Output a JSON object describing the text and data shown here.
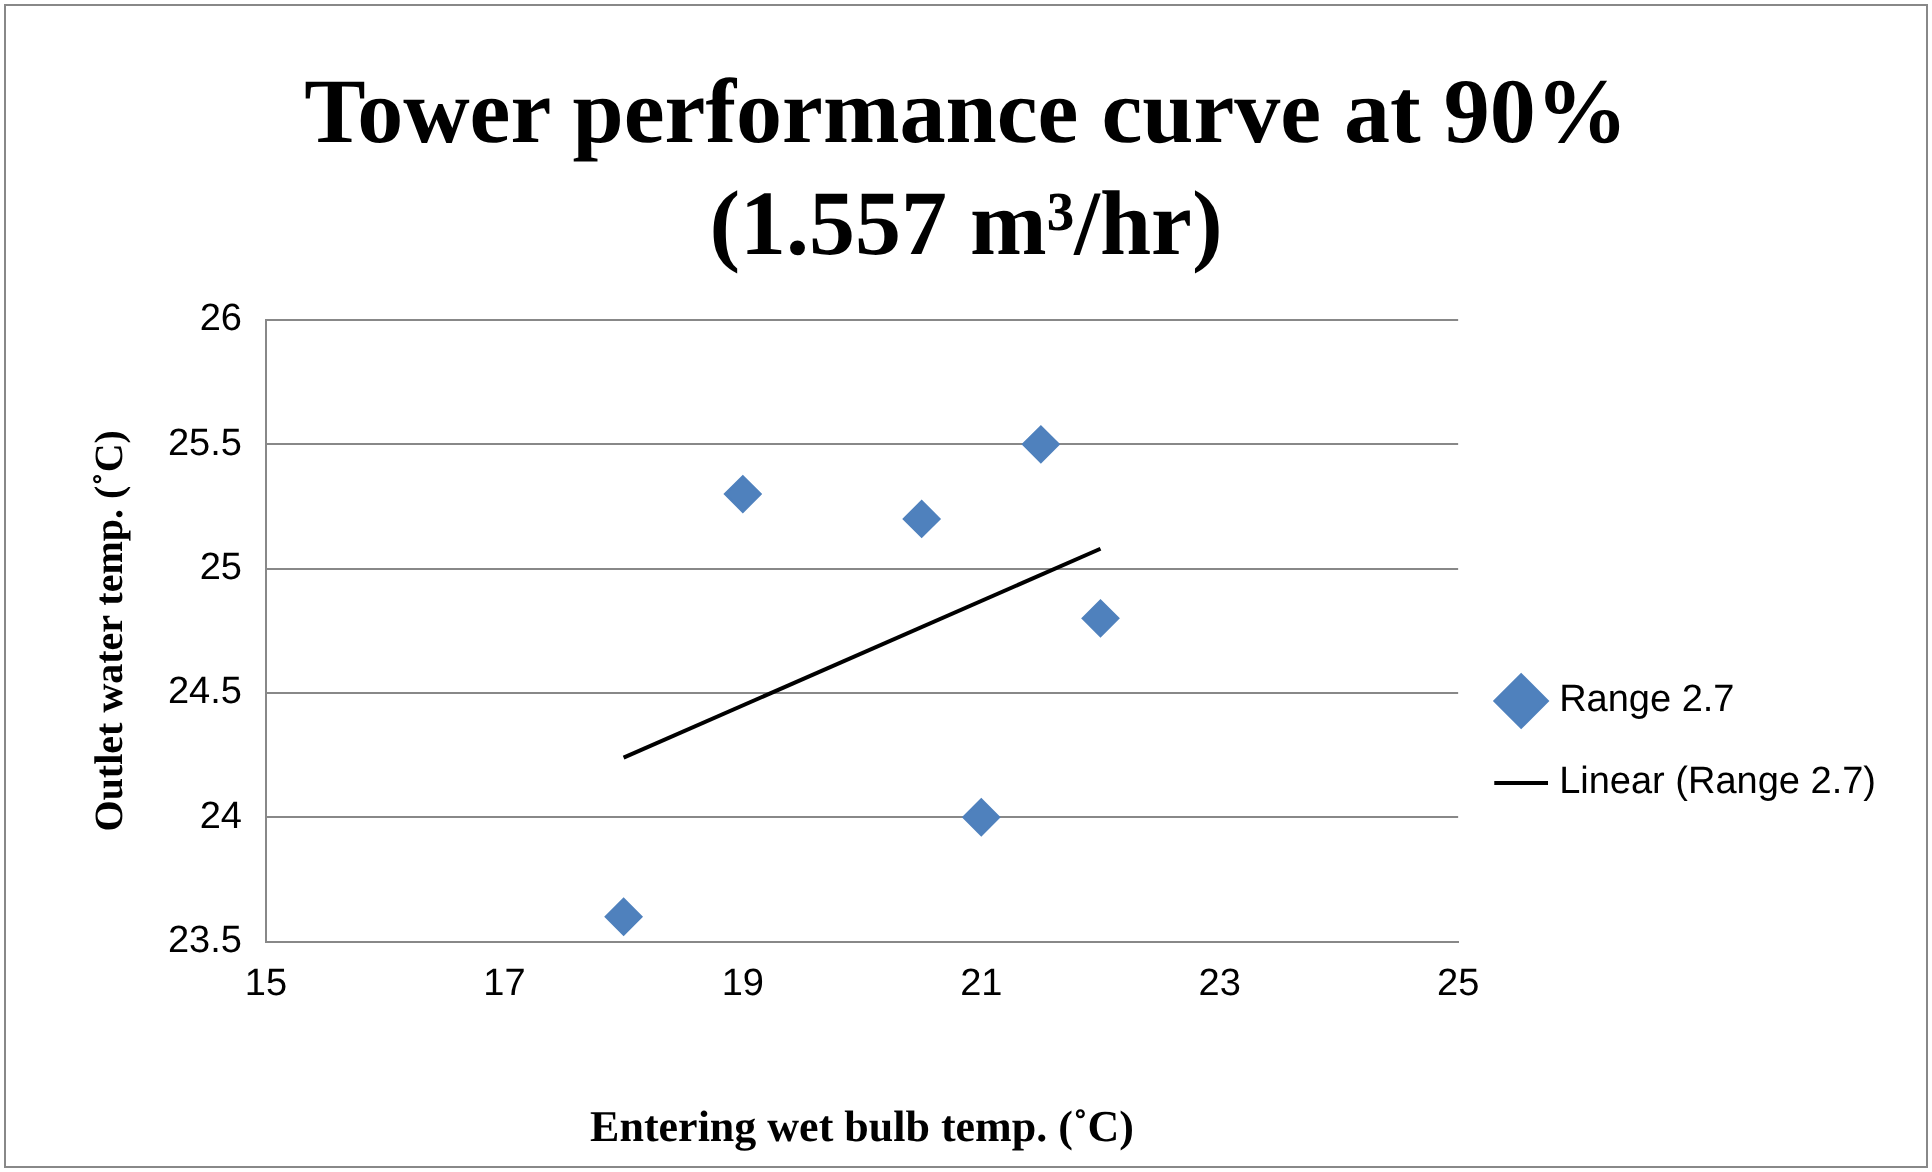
{
  "chart_data": {
    "type": "scatter",
    "title": "Tower performance curve at 90% (1.557 m³/hr)",
    "xlabel": "Entering wet bulb temp. (˚C)",
    "ylabel": "Outlet water temp. (˚C)",
    "series": [
      {
        "name": "Range 2.7",
        "color": "#4f81bd",
        "marker": "diamond",
        "x": [
          18,
          19,
          20.5,
          21.5,
          21,
          22
        ],
        "values": [
          23.6,
          25.3,
          25.2,
          25.5,
          24.0,
          24.8
        ]
      },
      {
        "name": "Linear (Range 2.7)",
        "type": "line",
        "color": "#000000",
        "marker": "none",
        "x": [
          18,
          22
        ],
        "values": [
          24.24,
          25.08
        ]
      }
    ],
    "xlim": [
      15,
      25
    ],
    "xticks": [
      15,
      17,
      19,
      21,
      23,
      25
    ],
    "ylim": [
      23.5,
      26
    ],
    "yticks": [
      23.5,
      24,
      24.5,
      25,
      25.5,
      26
    ],
    "grid": "y",
    "legend": "right"
  }
}
